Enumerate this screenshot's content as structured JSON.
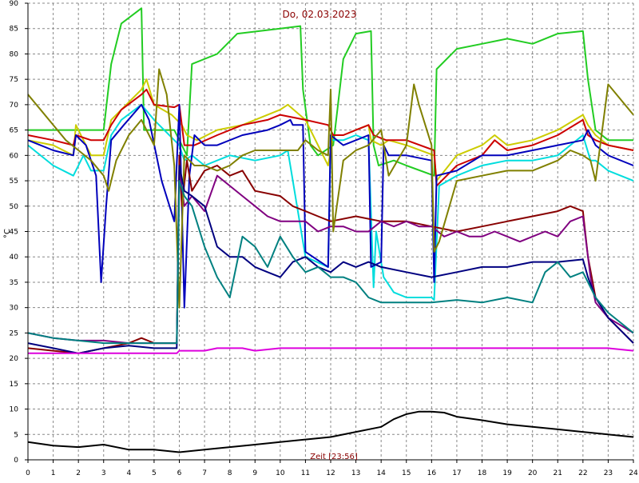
{
  "chart_data": {
    "type": "line",
    "title": "Do, 02.03.2023",
    "xlabel": "Zeit [23:56]",
    "ylabel": "°C",
    "xlim": [
      0,
      24
    ],
    "ylim": [
      0,
      90
    ],
    "x_ticks": [
      0,
      1,
      2,
      3,
      4,
      5,
      6,
      7,
      8,
      9,
      10,
      11,
      12,
      13,
      14,
      15,
      16,
      17,
      18,
      19,
      20,
      21,
      22,
      23,
      24
    ],
    "y_ticks": [
      0,
      5,
      10,
      15,
      20,
      25,
      30,
      35,
      40,
      45,
      50,
      55,
      60,
      65,
      70,
      75,
      80,
      85,
      90
    ],
    "grid": true,
    "series": [
      {
        "color": "#22cc22",
        "x": [
          0,
          2,
          3,
          3.3,
          3.7,
          4.5,
          4.6,
          5.8,
          6.3,
          6.5,
          7.5,
          8.3,
          10,
          10.8,
          10.9,
          11.2,
          11.5,
          12.1,
          12.5,
          13,
          13.6,
          13.7,
          13.9,
          14.5,
          15,
          16.1,
          16.2,
          17,
          18,
          19,
          20,
          21,
          22,
          22.2,
          22.5,
          23,
          24
        ],
        "y": [
          65,
          65,
          65,
          78,
          86,
          89,
          65,
          65,
          60,
          78,
          80,
          84,
          85,
          85.5,
          73,
          62,
          60,
          62,
          79,
          84,
          84.5,
          62,
          58,
          59,
          58,
          56,
          77,
          81,
          82,
          83,
          82,
          84,
          84.5,
          75,
          65,
          63,
          63
        ]
      },
      {
        "color": "#cccc00",
        "x": [
          0,
          1,
          1.8,
          1.9,
          2.5,
          3,
          3.3,
          3.7,
          4.5,
          4.7,
          5,
          5.7,
          6.1,
          6.3,
          6.7,
          7.5,
          8.5,
          9.5,
          10,
          10.3,
          11,
          11.9,
          12.1,
          12.5,
          13,
          13.5,
          13.6,
          14,
          14.3,
          15,
          16.1,
          16.2,
          17,
          18,
          18.5,
          19,
          20,
          21,
          22,
          22.2,
          22.5,
          23,
          24
        ],
        "y": [
          63,
          62,
          60,
          66,
          60,
          60,
          67,
          69,
          73,
          75,
          70,
          68,
          66,
          64,
          63,
          65,
          66,
          68,
          69,
          70,
          67,
          58,
          64,
          64,
          65,
          66,
          63,
          62,
          63,
          62,
          60,
          55,
          60,
          62,
          64,
          62,
          63,
          65,
          68,
          66,
          64,
          62,
          61
        ]
      },
      {
        "color": "#cc0000",
        "x": [
          0,
          1,
          1.8,
          1.9,
          2.5,
          3,
          3.3,
          3.7,
          4.5,
          4.7,
          5,
          5.8,
          6,
          6.2,
          6.6,
          7.5,
          8.5,
          9.5,
          10,
          11,
          11.9,
          12.1,
          12.5,
          13,
          13.5,
          13.7,
          14.2,
          15,
          16.1,
          16.2,
          17,
          18,
          18.5,
          19,
          20,
          21,
          22,
          22.2,
          22.5,
          23,
          24
        ],
        "y": [
          64,
          63,
          62,
          64,
          63,
          63,
          66,
          69,
          72,
          73,
          70,
          69.5,
          70,
          62,
          62,
          64,
          66,
          67,
          68,
          67,
          66,
          64,
          64,
          65,
          66,
          64,
          63,
          63,
          61,
          54,
          58,
          60,
          63,
          61,
          62,
          64,
          67,
          64,
          63,
          62,
          61
        ]
      },
      {
        "color": "#00dddd",
        "x": [
          0,
          1,
          1.8,
          2.2,
          2.5,
          3,
          3.3,
          3.7,
          4.5,
          5,
          6,
          6.2,
          6.5,
          7,
          8,
          9,
          10,
          10.3,
          11,
          11.9,
          12,
          12.5,
          13,
          13.5,
          13.7,
          13.8,
          14.1,
          14.5,
          15,
          16,
          16.1,
          16.3,
          17,
          18,
          19,
          20,
          21,
          21.5,
          22,
          22.3,
          22.5,
          23,
          24
        ],
        "y": [
          62,
          58,
          56,
          60,
          57,
          57,
          64,
          67,
          70,
          67,
          62,
          59,
          60,
          58,
          60,
          59,
          60,
          61,
          40,
          38,
          63,
          63,
          64,
          63,
          34,
          45,
          36,
          33,
          32,
          32,
          31.5,
          54,
          56,
          58,
          59,
          59,
          60,
          62,
          64,
          59,
          59,
          57,
          55
        ]
      },
      {
        "color": "#0000bb",
        "x": [
          0,
          1,
          1.8,
          1.9,
          2.3,
          2.7,
          2.9,
          3.1,
          3.3,
          3.8,
          4.5,
          4.8,
          5.3,
          5.8,
          6,
          6.2,
          6.4,
          6.6,
          7,
          7.5,
          8.5,
          9.5,
          10,
          10.4,
          10.5,
          10.9,
          11,
          11.9,
          12,
          12.5,
          13,
          13.5,
          13.6,
          14,
          14.1,
          14.3,
          15,
          16,
          16.1,
          16.2,
          17,
          18,
          19,
          20,
          21,
          22,
          22.2,
          22.5,
          23,
          24
        ],
        "y": [
          63,
          61,
          60,
          64,
          62,
          56,
          35,
          50,
          63,
          66,
          70,
          67,
          55,
          47,
          70,
          30,
          56,
          64,
          62,
          62,
          64,
          65,
          66,
          67,
          66,
          66,
          41,
          38,
          64,
          62,
          63,
          64,
          38,
          39,
          62,
          60,
          60,
          59,
          35,
          56,
          57,
          60,
          60,
          61,
          62,
          63,
          65,
          62,
          60,
          58
        ]
      },
      {
        "color": "#880000",
        "x": [
          0,
          1,
          2,
          2.5,
          3,
          3.5,
          4,
          4.5,
          5,
          5.9,
          6,
          6.1,
          6.3,
          6.5,
          7,
          7.5,
          8,
          8.5,
          9,
          10,
          10.5,
          11,
          11.5,
          12,
          13,
          14,
          15,
          16,
          17,
          18,
          19,
          20,
          21,
          21.5,
          22,
          22.2,
          22.5,
          23,
          24
        ],
        "y": [
          22,
          21.5,
          21,
          21.5,
          22,
          22.5,
          23,
          24,
          23,
          23,
          60,
          50,
          59,
          53,
          57,
          58,
          56,
          57,
          53,
          52,
          50,
          49,
          48,
          47,
          48,
          47,
          47,
          46,
          45,
          46,
          47,
          48,
          49,
          50,
          49,
          40,
          32,
          28,
          23
        ]
      },
      {
        "color": "#800080",
        "x": [
          0,
          1,
          2,
          3,
          4,
          5,
          5.9,
          6,
          6.2,
          6.5,
          7,
          7.5,
          8,
          8.5,
          9,
          9.5,
          10,
          10.5,
          11,
          11.5,
          12,
          12.5,
          13,
          13.5,
          14,
          14.5,
          15,
          15.5,
          16,
          16.5,
          17,
          17.5,
          18,
          18.5,
          19,
          19.5,
          20,
          20.5,
          21,
          21.5,
          22,
          22.3,
          22.5,
          23,
          24
        ],
        "y": [
          25,
          24,
          23.5,
          23.5,
          23,
          23,
          23,
          57,
          50,
          52,
          49,
          56,
          54,
          52,
          50,
          48,
          47,
          47,
          47,
          45,
          46,
          46,
          45,
          45,
          47,
          46,
          47,
          46,
          46,
          44,
          45,
          44,
          44,
          45,
          44,
          43,
          44,
          45,
          44,
          47,
          48,
          36,
          31,
          28,
          25
        ]
      },
      {
        "color": "#808000",
        "x": [
          0,
          0.5,
          1,
          1.5,
          2,
          2.5,
          3,
          3.2,
          3.5,
          4,
          4.5,
          5,
          5.2,
          5.5,
          5.8,
          6,
          6.2,
          6.4,
          6.6,
          7,
          7.5,
          8,
          8.5,
          9,
          10,
          10.7,
          11,
          11.5,
          11.9,
          12,
          12.1,
          12.5,
          13,
          13.5,
          14,
          14.3,
          15,
          15.3,
          15.5,
          16,
          16.1,
          16.3,
          17,
          18,
          19,
          20,
          21,
          21.5,
          22,
          22.3,
          22.5,
          23,
          24
        ],
        "y": [
          72,
          69,
          66,
          63,
          61,
          59,
          56,
          53,
          59,
          64,
          67,
          62,
          77,
          72,
          58,
          30,
          60,
          59,
          58,
          58,
          57,
          58,
          60,
          61,
          61,
          61,
          63,
          61,
          60,
          73,
          45,
          59,
          61,
          62,
          65,
          56,
          62,
          74,
          70,
          62,
          41,
          43,
          55,
          56,
          57,
          57,
          59,
          61,
          60,
          59,
          55,
          74,
          68
        ]
      },
      {
        "color": "#000080",
        "x": [
          0,
          1,
          2,
          3,
          4,
          5,
          5.9,
          6,
          6.2,
          6.5,
          7,
          7.5,
          8,
          8.5,
          9,
          9.5,
          10,
          10.5,
          11,
          11.5,
          12,
          12.5,
          13,
          13.5,
          14,
          15,
          16,
          17,
          18,
          19,
          20,
          21,
          22,
          22.2,
          22.5,
          23,
          24
        ],
        "y": [
          23,
          22,
          21,
          22,
          22.5,
          22,
          22,
          58,
          53,
          52,
          50,
          42,
          40,
          40,
          38,
          37,
          36,
          39,
          40,
          38,
          37,
          39,
          38,
          39,
          38,
          37,
          36,
          37,
          38,
          38,
          39,
          39,
          39.5,
          36,
          32,
          28,
          23
        ]
      },
      {
        "color": "#008080",
        "x": [
          0,
          1,
          2,
          3,
          4,
          5,
          5.9,
          6,
          6.2,
          6.5,
          7,
          7.5,
          8,
          8.5,
          9,
          9.5,
          10,
          10.5,
          11,
          11.5,
          12,
          12.5,
          13,
          13.5,
          14,
          15,
          16,
          17,
          18,
          19,
          20,
          20.5,
          21,
          21.5,
          22,
          22.3,
          22.5,
          23,
          24
        ],
        "y": [
          25,
          24,
          23.5,
          23,
          23,
          23,
          23,
          55,
          52,
          50,
          42,
          36,
          32,
          44,
          42,
          38,
          44,
          40,
          37,
          38,
          36,
          36,
          35,
          32,
          31,
          31,
          31,
          31.5,
          31,
          32,
          31,
          37,
          39,
          36,
          37,
          34,
          32,
          29,
          25
        ]
      },
      {
        "color": "#dd00dd",
        "x": [
          0,
          1,
          2,
          3,
          4,
          5,
          5.9,
          6,
          7,
          7.5,
          8,
          8.5,
          9,
          10,
          11,
          12,
          13,
          14,
          15,
          16,
          17,
          18,
          19,
          20,
          21,
          22,
          23,
          24
        ],
        "y": [
          21,
          21,
          21,
          21,
          21,
          21,
          21,
          21.5,
          21.5,
          22,
          22,
          22,
          21.5,
          22,
          22,
          22,
          22,
          22,
          22,
          22,
          22,
          22,
          22,
          22,
          22,
          22,
          22,
          21.5
        ]
      },
      {
        "color": "#000000",
        "x": [
          0,
          1,
          2,
          3,
          4,
          5,
          6,
          7,
          8,
          9,
          10,
          11,
          12,
          13,
          14,
          14.5,
          15,
          15.5,
          16,
          16.5,
          17,
          18,
          19,
          20,
          21,
          22,
          23,
          24
        ],
        "y": [
          3.5,
          2.8,
          2.5,
          3,
          2,
          2,
          1.5,
          2,
          2.5,
          3,
          3.5,
          4,
          4.5,
          5.5,
          6.5,
          8,
          9,
          9.5,
          9.5,
          9.3,
          8.5,
          7.8,
          7,
          6.5,
          6,
          5.5,
          5,
          4.5
        ]
      }
    ]
  }
}
